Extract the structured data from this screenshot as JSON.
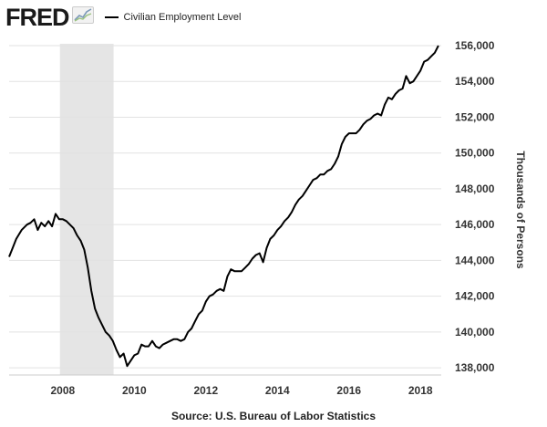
{
  "brand": {
    "name": "FRED"
  },
  "legend": {
    "series_label": "Civilian Employment Level"
  },
  "source": "Source: U.S. Bureau of Labor Statistics",
  "colors": {
    "line": "#000000",
    "recession": "#e5e5e5",
    "grid": "#e2e2e2"
  },
  "chart_data": {
    "type": "line",
    "title": "",
    "xlabel": "",
    "ylabel": "Thousands of Persons",
    "xlim": [
      2006.5,
      2018.58
    ],
    "ylim": [
      137600,
      156100
    ],
    "x_ticks": [
      2008,
      2010,
      2012,
      2014,
      2016,
      2018
    ],
    "x_tick_labels": [
      "2008",
      "2010",
      "2012",
      "2014",
      "2016",
      "2018"
    ],
    "y_ticks": [
      138000,
      140000,
      142000,
      144000,
      146000,
      148000,
      150000,
      152000,
      154000,
      156000
    ],
    "y_tick_labels": [
      "138,000",
      "140,000",
      "142,000",
      "144,000",
      "146,000",
      "148,000",
      "150,000",
      "152,000",
      "154,000",
      "156,000"
    ],
    "grid": "horizontal",
    "legend_position": "top-left",
    "recession_shading": [
      {
        "start": 2007.92,
        "end": 2009.42
      }
    ],
    "series": [
      {
        "name": "Civilian Employment Level",
        "x": [
          2006.5,
          2006.6,
          2006.7,
          2006.85,
          2007.0,
          2007.1,
          2007.2,
          2007.3,
          2007.4,
          2007.5,
          2007.6,
          2007.7,
          2007.8,
          2007.9,
          2008.0,
          2008.1,
          2008.2,
          2008.3,
          2008.4,
          2008.5,
          2008.6,
          2008.7,
          2008.8,
          2008.9,
          2009.0,
          2009.1,
          2009.2,
          2009.3,
          2009.4,
          2009.5,
          2009.6,
          2009.7,
          2009.8,
          2009.9,
          2010.0,
          2010.1,
          2010.2,
          2010.3,
          2010.4,
          2010.5,
          2010.6,
          2010.7,
          2010.8,
          2010.9,
          2011.0,
          2011.1,
          2011.2,
          2011.3,
          2011.4,
          2011.5,
          2011.6,
          2011.7,
          2011.8,
          2011.9,
          2012.0,
          2012.1,
          2012.2,
          2012.3,
          2012.4,
          2012.5,
          2012.6,
          2012.7,
          2012.8,
          2012.9,
          2013.0,
          2013.1,
          2013.2,
          2013.3,
          2013.4,
          2013.5,
          2013.6,
          2013.7,
          2013.8,
          2013.9,
          2014.0,
          2014.1,
          2014.2,
          2014.3,
          2014.4,
          2014.5,
          2014.6,
          2014.7,
          2014.8,
          2014.9,
          2015.0,
          2015.1,
          2015.2,
          2015.3,
          2015.4,
          2015.5,
          2015.6,
          2015.7,
          2015.8,
          2015.9,
          2016.0,
          2016.1,
          2016.2,
          2016.3,
          2016.4,
          2016.5,
          2016.6,
          2016.7,
          2016.8,
          2016.9,
          2017.0,
          2017.1,
          2017.2,
          2017.3,
          2017.4,
          2017.5,
          2017.6,
          2017.7,
          2017.8,
          2017.9,
          2018.0,
          2018.1,
          2018.2,
          2018.3,
          2018.4,
          2018.5
        ],
        "values": [
          144200,
          144700,
          145200,
          145700,
          146000,
          146100,
          146300,
          145700,
          146100,
          145900,
          146200,
          145900,
          146600,
          146300,
          146300,
          146200,
          146000,
          145800,
          145400,
          145100,
          144600,
          143600,
          142300,
          141300,
          140800,
          140400,
          140000,
          139800,
          139500,
          139000,
          138600,
          138800,
          138100,
          138400,
          138700,
          138800,
          139300,
          139200,
          139200,
          139500,
          139200,
          139100,
          139300,
          139400,
          139500,
          139600,
          139600,
          139500,
          139600,
          140000,
          140200,
          140600,
          141000,
          141200,
          141700,
          142000,
          142100,
          142300,
          142400,
          142300,
          143100,
          143500,
          143400,
          143400,
          143400,
          143600,
          143800,
          144100,
          144300,
          144400,
          143900,
          144700,
          145200,
          145400,
          145700,
          145900,
          146200,
          146400,
          146700,
          147100,
          147400,
          147600,
          147900,
          148200,
          148500,
          148600,
          148800,
          148800,
          149000,
          149100,
          149400,
          149800,
          150500,
          150900,
          151100,
          151100,
          151100,
          151300,
          151600,
          151800,
          151900,
          152100,
          152200,
          152100,
          152700,
          153100,
          153000,
          153300,
          153500,
          153600,
          154300,
          153900,
          154000,
          154300,
          154600,
          155100,
          155200,
          155400,
          155600,
          156000
        ]
      }
    ]
  }
}
